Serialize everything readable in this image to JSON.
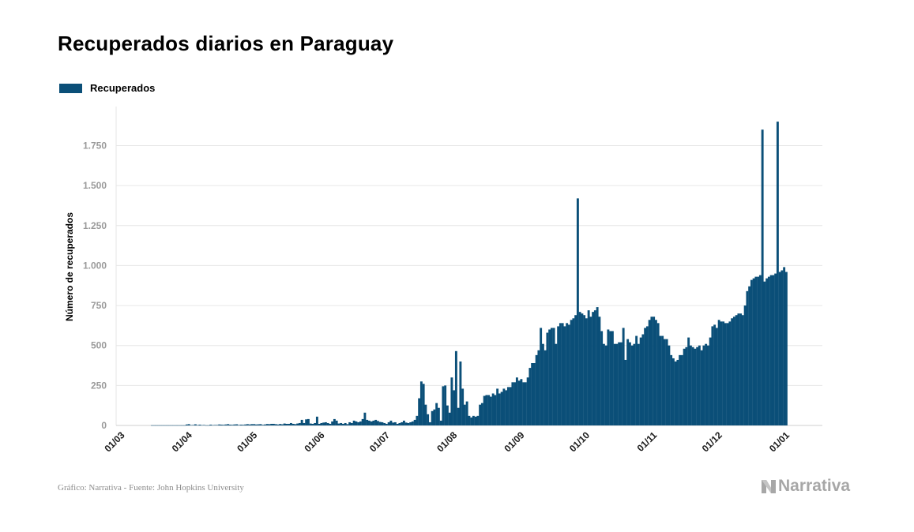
{
  "title": "Recuperados diarios en Paraguay",
  "source": "Gráfico: Narrativa - Fuente: John Hopkins University",
  "logo_text": "Narrativa",
  "colors": {
    "bar": "#0b4f78",
    "grid": "#e6e6e6",
    "axis": "#cfcfcf"
  },
  "chart_data": {
    "type": "bar",
    "ylabel": "Número de recuperados",
    "ylim": [
      0,
      2000
    ],
    "yticks": [
      0,
      250,
      500,
      750,
      1000,
      1250,
      1500,
      1750
    ],
    "ytick_labels": [
      "0",
      "250",
      "500",
      "750",
      "1.000",
      "1.250",
      "1.500",
      "1.750"
    ],
    "xtick_labels": [
      "01/03",
      "01/04",
      "01/05",
      "01/06",
      "01/07",
      "01/08",
      "01/09",
      "01/10",
      "01/11",
      "01/12",
      "01/01"
    ],
    "xtick_day_index": [
      1,
      32,
      62,
      93,
      123,
      154,
      185,
      215,
      246,
      276,
      307
    ],
    "grid": true,
    "legend": "top-left",
    "series": [
      {
        "name": "Recuperados",
        "start": "2020-03-01",
        "values": [
          0,
          0,
          0,
          0,
          0,
          0,
          0,
          0,
          0,
          0,
          0,
          0,
          0,
          0,
          0,
          1,
          1,
          1,
          1,
          1,
          1,
          1,
          1,
          1,
          1,
          1,
          1,
          1,
          1,
          1,
          1,
          6,
          8,
          2,
          3,
          7,
          2,
          5,
          2,
          3,
          1,
          1,
          5,
          2,
          3,
          3,
          6,
          5,
          4,
          6,
          8,
          5,
          4,
          6,
          7,
          3,
          5,
          4,
          6,
          8,
          6,
          8,
          8,
          6,
          7,
          8,
          4,
          6,
          9,
          8,
          10,
          10,
          8,
          6,
          9,
          7,
          12,
          10,
          10,
          15,
          10,
          8,
          12,
          15,
          35,
          15,
          38,
          40,
          12,
          10,
          15,
          55,
          10,
          15,
          18,
          20,
          15,
          10,
          25,
          40,
          30,
          12,
          15,
          10,
          15,
          8,
          20,
          15,
          30,
          25,
          20,
          25,
          40,
          80,
          35,
          30,
          25,
          30,
          35,
          28,
          22,
          20,
          15,
          10,
          20,
          30,
          18,
          20,
          10,
          15,
          20,
          30,
          18,
          15,
          20,
          25,
          35,
          60,
          170,
          275,
          260,
          130,
          70,
          20,
          90,
          100,
          140,
          110,
          30,
          245,
          250,
          125,
          80,
          300,
          220,
          465,
          110,
          400,
          230,
          130,
          150,
          60,
          50,
          60,
          55,
          60,
          130,
          140,
          185,
          190,
          190,
          180,
          200,
          190,
          230,
          200,
          210,
          230,
          220,
          240,
          240,
          270,
          270,
          300,
          280,
          290,
          270,
          270,
          300,
          360,
          390,
          390,
          440,
          470,
          610,
          510,
          470,
          580,
          600,
          610,
          610,
          510,
          620,
          640,
          640,
          620,
          640,
          630,
          660,
          670,
          690,
          1420,
          710,
          700,
          690,
          670,
          720,
          680,
          710,
          720,
          740,
          680,
          590,
          510,
          500,
          600,
          590,
          590,
          510,
          510,
          520,
          520,
          610,
          410,
          540,
          520,
          500,
          510,
          560,
          510,
          550,
          570,
          610,
          620,
          660,
          680,
          680,
          660,
          640,
          560,
          560,
          540,
          540,
          500,
          440,
          420,
          400,
          410,
          440,
          440,
          480,
          490,
          550,
          500,
          490,
          480,
          490,
          500,
          470,
          500,
          510,
          500,
          550,
          620,
          630,
          610,
          660,
          650,
          650,
          640,
          640,
          650,
          670,
          680,
          690,
          700,
          700,
          690,
          750,
          840,
          870,
          910,
          920,
          930,
          930,
          940,
          1850,
          900,
          920,
          930,
          940,
          940,
          950,
          1900,
          960,
          970,
          990,
          960
        ]
      }
    ]
  }
}
